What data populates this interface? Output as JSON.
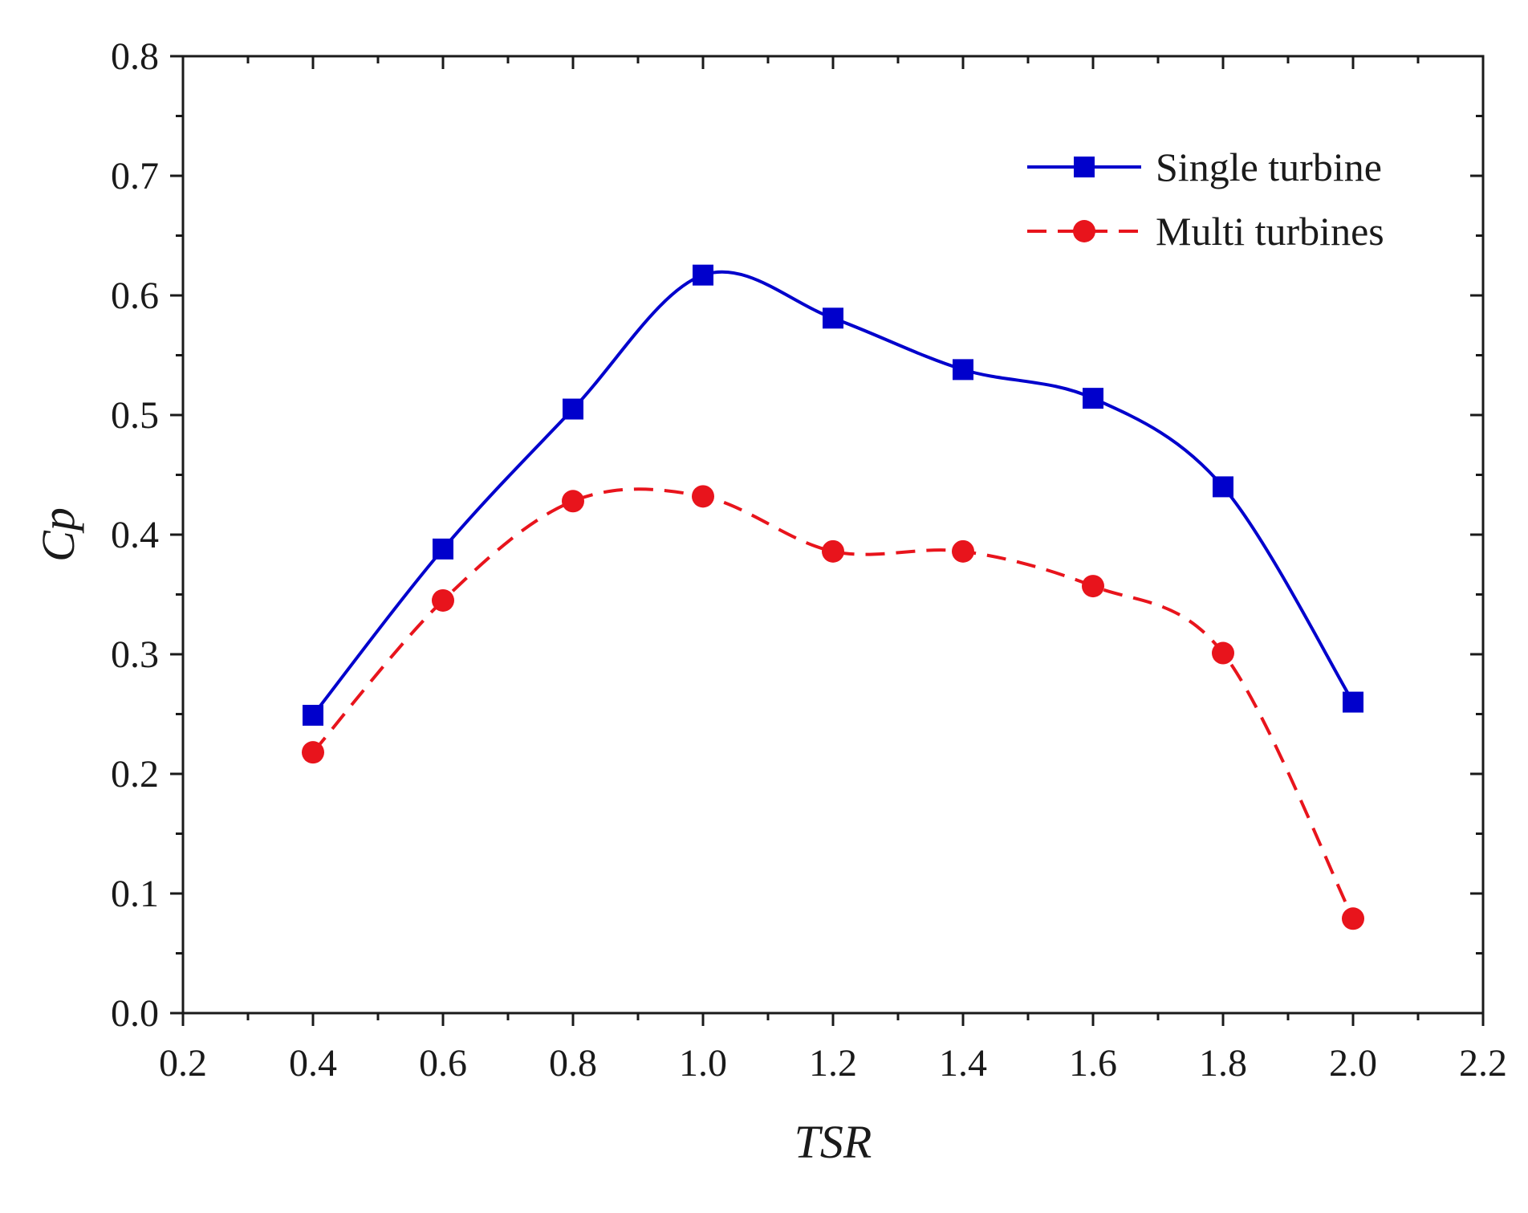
{
  "chart_data": {
    "type": "line",
    "title": "",
    "xlabel": "TSR",
    "ylabel": "Cp",
    "xlim": [
      0.2,
      2.2
    ],
    "ylim": [
      0.0,
      0.8
    ],
    "xticks": [
      0.2,
      0.4,
      0.6,
      0.8,
      1.0,
      1.2,
      1.4,
      1.6,
      1.8,
      2.0,
      2.2
    ],
    "yticks": [
      0.0,
      0.1,
      0.2,
      0.3,
      0.4,
      0.5,
      0.6,
      0.7,
      0.8
    ],
    "xtick_labels": [
      "0.2",
      "0.4",
      "0.6",
      "0.8",
      "1.0",
      "1.2",
      "1.4",
      "1.6",
      "1.8",
      "2.0",
      "2.2"
    ],
    "ytick_labels": [
      "0.0",
      "0.1",
      "0.2",
      "0.3",
      "0.4",
      "0.5",
      "0.6",
      "0.7",
      "0.8"
    ],
    "grid": false,
    "legend_position": "top-right",
    "series": [
      {
        "name": "Single turbine",
        "color": "#0000cc",
        "marker": "square",
        "line_style": "solid",
        "x": [
          0.4,
          0.6,
          0.8,
          1.0,
          1.2,
          1.4,
          1.6,
          1.8,
          2.0
        ],
        "values": [
          0.249,
          0.388,
          0.505,
          0.617,
          0.581,
          0.538,
          0.514,
          0.44,
          0.26
        ]
      },
      {
        "name": "Multi turbines",
        "color": "#e8141c",
        "marker": "circle",
        "line_style": "dashed",
        "x": [
          0.4,
          0.6,
          0.8,
          1.0,
          1.2,
          1.4,
          1.6,
          1.8,
          2.0
        ],
        "values": [
          0.218,
          0.345,
          0.428,
          0.432,
          0.386,
          0.386,
          0.357,
          0.301,
          0.079
        ]
      }
    ]
  }
}
